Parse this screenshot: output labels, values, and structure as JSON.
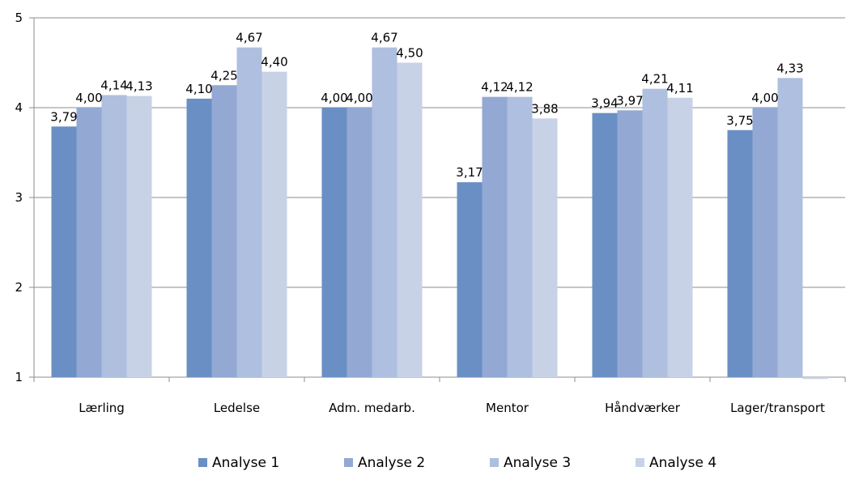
{
  "chart_data": {
    "type": "bar",
    "title": "",
    "xlabel": "",
    "ylabel": "",
    "categories": [
      "Lærling",
      "Ledelse",
      "Adm. medarb.",
      "Mentor",
      "Håndværker",
      "Lager/transport"
    ],
    "ylim": [
      1,
      5
    ],
    "yticks": [
      "1",
      "2",
      "3",
      "4",
      "5"
    ],
    "grid": "horizontal",
    "legend_position": "bottom",
    "series": [
      {
        "name": "Analyse 1",
        "color": "#6a8fc4",
        "values": [
          3.79,
          4.1,
          4.0,
          3.17,
          3.94,
          3.75
        ],
        "labels": [
          "3,79",
          "4,10",
          "4,00",
          "3,17",
          "3,94",
          "3,75"
        ]
      },
      {
        "name": "Analyse 2",
        "color": "#93a9d3",
        "values": [
          4.0,
          4.25,
          4.0,
          4.12,
          3.97,
          4.0
        ],
        "labels": [
          "4,00",
          "4,25",
          "4,00",
          "4,12",
          "3,97",
          "4,00"
        ]
      },
      {
        "name": "Analyse 3",
        "color": "#aebfdf",
        "values": [
          4.14,
          4.67,
          4.67,
          4.12,
          4.21,
          4.33
        ],
        "labels": [
          "4,14",
          "4,67",
          "4,67",
          "4,12",
          "4,21",
          "4,33"
        ]
      },
      {
        "name": "Analyse 4",
        "color": "#c8d2e7",
        "values": [
          4.13,
          4.4,
          4.5,
          3.88,
          4.11,
          0.98
        ],
        "labels": [
          "4,13",
          "4,40",
          "4,50",
          "3,88",
          "4,11",
          ""
        ]
      }
    ]
  }
}
